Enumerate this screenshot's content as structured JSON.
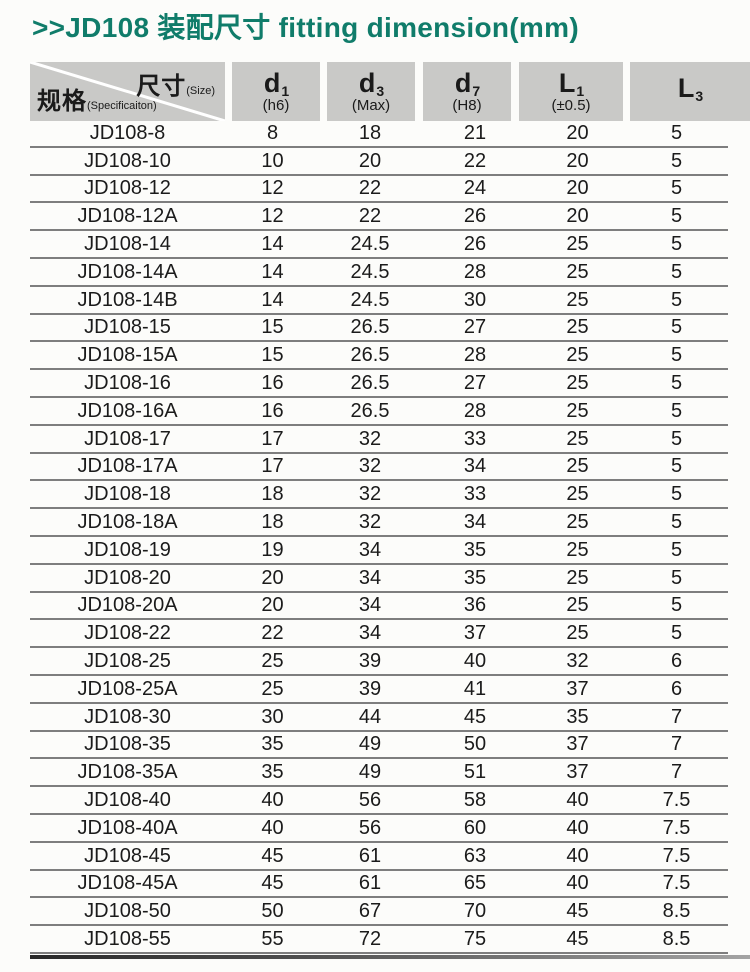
{
  "title": ">>JD108 装配尺寸 fitting dimension(mm)",
  "colors": {
    "title_teal": "#107c6a",
    "header_gray": "#c9c9c7",
    "row_line_gray": "#7e7e7e"
  },
  "table": {
    "corner": {
      "size_label": "尺寸",
      "size_sub": "(Size)",
      "spec_label": "规格",
      "spec_sub": "(Specificaiton)"
    },
    "columns": [
      {
        "symbol": "d",
        "sub": "1",
        "note": "(h6)"
      },
      {
        "symbol": "d",
        "sub": "3",
        "note": "(Max)"
      },
      {
        "symbol": "d",
        "sub": "7",
        "note": "(H8)"
      },
      {
        "symbol": "L",
        "sub": "1",
        "note": "(±0.5)"
      },
      {
        "symbol": "L",
        "sub": "3",
        "note": ""
      }
    ],
    "rows": [
      {
        "spec": "JD108-8",
        "d1": "8",
        "d3": "18",
        "d7": "21",
        "L1": "20",
        "L3": "5"
      },
      {
        "spec": "JD108-10",
        "d1": "10",
        "d3": "20",
        "d7": "22",
        "L1": "20",
        "L3": "5"
      },
      {
        "spec": "JD108-12",
        "d1": "12",
        "d3": "22",
        "d7": "24",
        "L1": "20",
        "L3": "5"
      },
      {
        "spec": "JD108-12A",
        "d1": "12",
        "d3": "22",
        "d7": "26",
        "L1": "20",
        "L3": "5"
      },
      {
        "spec": "JD108-14",
        "d1": "14",
        "d3": "24.5",
        "d7": "26",
        "L1": "25",
        "L3": "5"
      },
      {
        "spec": "JD108-14A",
        "d1": "14",
        "d3": "24.5",
        "d7": "28",
        "L1": "25",
        "L3": "5"
      },
      {
        "spec": "JD108-14B",
        "d1": "14",
        "d3": "24.5",
        "d7": "30",
        "L1": "25",
        "L3": "5"
      },
      {
        "spec": "JD108-15",
        "d1": "15",
        "d3": "26.5",
        "d7": "27",
        "L1": "25",
        "L3": "5"
      },
      {
        "spec": "JD108-15A",
        "d1": "15",
        "d3": "26.5",
        "d7": "28",
        "L1": "25",
        "L3": "5"
      },
      {
        "spec": "JD108-16",
        "d1": "16",
        "d3": "26.5",
        "d7": "27",
        "L1": "25",
        "L3": "5"
      },
      {
        "spec": "JD108-16A",
        "d1": "16",
        "d3": "26.5",
        "d7": "28",
        "L1": "25",
        "L3": "5"
      },
      {
        "spec": "JD108-17",
        "d1": "17",
        "d3": "32",
        "d7": "33",
        "L1": "25",
        "L3": "5"
      },
      {
        "spec": "JD108-17A",
        "d1": "17",
        "d3": "32",
        "d7": "34",
        "L1": "25",
        "L3": "5"
      },
      {
        "spec": "JD108-18",
        "d1": "18",
        "d3": "32",
        "d7": "33",
        "L1": "25",
        "L3": "5"
      },
      {
        "spec": "JD108-18A",
        "d1": "18",
        "d3": "32",
        "d7": "34",
        "L1": "25",
        "L3": "5"
      },
      {
        "spec": "JD108-19",
        "d1": "19",
        "d3": "34",
        "d7": "35",
        "L1": "25",
        "L3": "5"
      },
      {
        "spec": "JD108-20",
        "d1": "20",
        "d3": "34",
        "d7": "35",
        "L1": "25",
        "L3": "5"
      },
      {
        "spec": "JD108-20A",
        "d1": "20",
        "d3": "34",
        "d7": "36",
        "L1": "25",
        "L3": "5"
      },
      {
        "spec": "JD108-22",
        "d1": "22",
        "d3": "34",
        "d7": "37",
        "L1": "25",
        "L3": "5"
      },
      {
        "spec": "JD108-25",
        "d1": "25",
        "d3": "39",
        "d7": "40",
        "L1": "32",
        "L3": "6"
      },
      {
        "spec": "JD108-25A",
        "d1": "25",
        "d3": "39",
        "d7": "41",
        "L1": "37",
        "L3": "6"
      },
      {
        "spec": "JD108-30",
        "d1": "30",
        "d3": "44",
        "d7": "45",
        "L1": "35",
        "L3": "7"
      },
      {
        "spec": "JD108-35",
        "d1": "35",
        "d3": "49",
        "d7": "50",
        "L1": "37",
        "L3": "7"
      },
      {
        "spec": "JD108-35A",
        "d1": "35",
        "d3": "49",
        "d7": "51",
        "L1": "37",
        "L3": "7"
      },
      {
        "spec": "JD108-40",
        "d1": "40",
        "d3": "56",
        "d7": "58",
        "L1": "40",
        "L3": "7.5"
      },
      {
        "spec": "JD108-40A",
        "d1": "40",
        "d3": "56",
        "d7": "60",
        "L1": "40",
        "L3": "7.5"
      },
      {
        "spec": "JD108-45",
        "d1": "45",
        "d3": "61",
        "d7": "63",
        "L1": "40",
        "L3": "7.5"
      },
      {
        "spec": "JD108-45A",
        "d1": "45",
        "d3": "61",
        "d7": "65",
        "L1": "40",
        "L3": "7.5"
      },
      {
        "spec": "JD108-50",
        "d1": "50",
        "d3": "67",
        "d7": "70",
        "L1": "45",
        "L3": "8.5"
      },
      {
        "spec": "JD108-55",
        "d1": "55",
        "d3": "72",
        "d7": "75",
        "L1": "45",
        "L3": "8.5"
      }
    ]
  }
}
